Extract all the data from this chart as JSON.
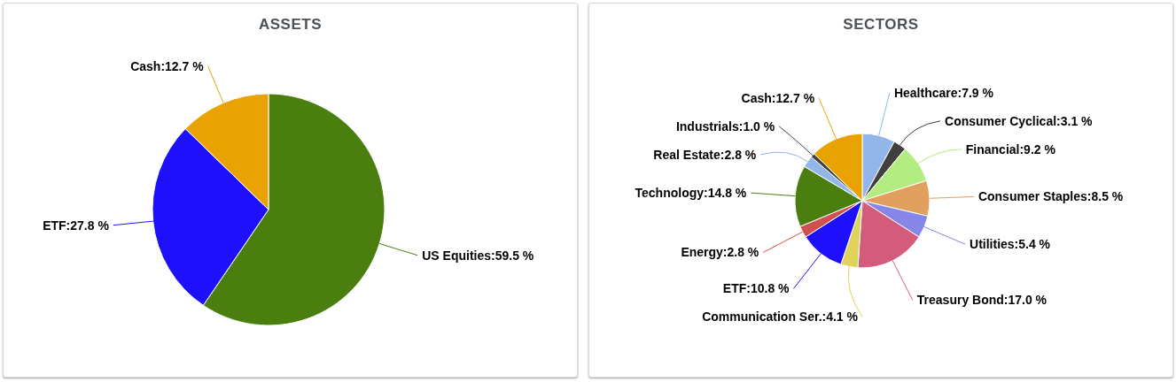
{
  "chart_data": [
    {
      "type": "pie",
      "title": "ASSETS",
      "categories": [
        "US Equities",
        "ETF",
        "Cash"
      ],
      "values": [
        59.5,
        27.8,
        12.7
      ],
      "colors": [
        "#4a7f10",
        "#1f10fb",
        "#e8a302"
      ],
      "value_labels": [
        "59.5 %",
        "27.8 %",
        "12.7 %"
      ]
    },
    {
      "type": "pie",
      "title": "SECTORS",
      "categories": [
        "Healthcare",
        "Consumer Cyclical",
        "Financial",
        "Consumer Staples",
        "Utilities",
        "Treasury Bond",
        "Communication Ser.",
        "ETF",
        "Energy",
        "Technology",
        "Real Estate",
        "Industrials",
        "Cash"
      ],
      "values": [
        7.9,
        3.1,
        9.2,
        8.5,
        5.4,
        17.0,
        4.1,
        10.8,
        2.8,
        14.8,
        2.8,
        1.0,
        12.7
      ],
      "colors": [
        "#92b6ea",
        "#404040",
        "#b3ec80",
        "#e2a05f",
        "#8686e8",
        "#d35b7c",
        "#e0d35a",
        "#1f10fb",
        "#d0504f",
        "#4a7f10",
        "#92b6ea",
        "#404040",
        "#e8a302"
      ],
      "value_labels": [
        "7.9 %",
        "3.1 %",
        "9.2 %",
        "8.5 %",
        "5.4 %",
        "17.0 %",
        "4.1 %",
        "10.8 %",
        "2.8 %",
        "14.8 %",
        "2.8 %",
        "1.0 %",
        "12.7 %"
      ]
    }
  ]
}
